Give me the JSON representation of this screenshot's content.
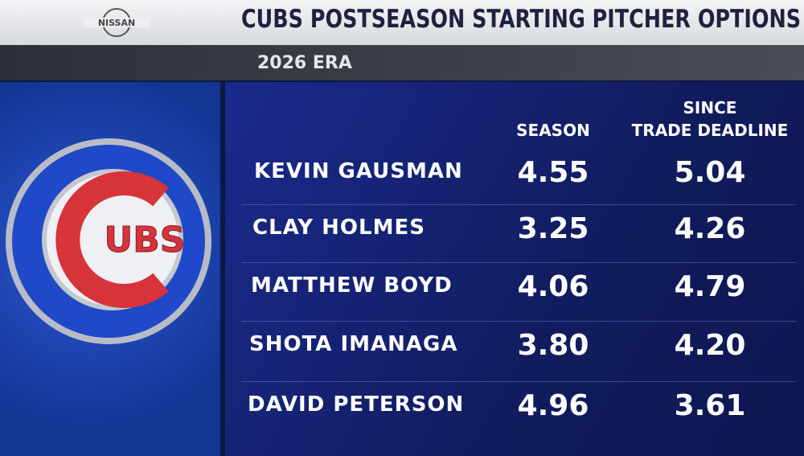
{
  "sponsor": "NISSAN",
  "header": {
    "title": "CUBS POSTSEASON STARTING PITCHER OPTIONS",
    "subtitle": "2026 ERA"
  },
  "logo": {
    "text": "UBS"
  },
  "table": {
    "columns": [
      [
        "SEASON"
      ],
      [
        "SINCE",
        "TRADE DEADLINE"
      ]
    ],
    "rows": [
      [
        "KEVIN GAUSMAN",
        "4.55",
        "5.04"
      ],
      [
        "CLAY HOLMES",
        "3.25",
        "4.26"
      ],
      [
        "MATTHEW BOYD",
        "4.06",
        "4.79"
      ],
      [
        "SHOTA IMANAGA",
        "3.80",
        "4.20"
      ],
      [
        "DAVID PETERSON",
        "4.96",
        "3.61"
      ]
    ]
  }
}
